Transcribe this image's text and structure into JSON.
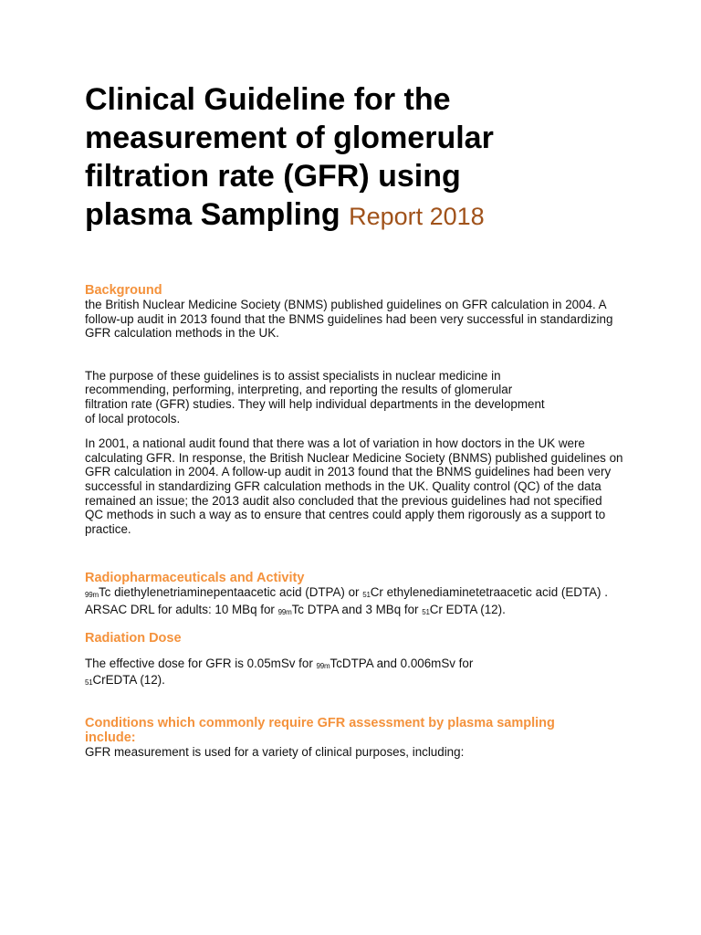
{
  "title": {
    "main": "Clinical Guideline for the measurement of glomerular filtration rate (GFR) using plasma Sampling",
    "report": "Report 2018"
  },
  "background": {
    "heading": "Background",
    "p1": "the British Nuclear Medicine Society (BNMS) published guidelines on GFR calculation in 2004. A follow-up audit in 2013 found that the BNMS guidelines had been very successful in standardizing GFR calculation methods in the UK.",
    "p2": "The purpose of these guidelines is to assist specialists in nuclear medicine in recommending, performing, interpreting, and reporting the results of glomerular filtration rate (GFR) studies. They will help individual departments in the development of local protocols.",
    "p3": "In 2001, a national audit found that there was a lot of variation in how doctors in the UK were calculating GFR. In response, the British Nuclear Medicine Society (BNMS) published guidelines on GFR calculation in 2004. A follow-up audit in 2013 found that the BNMS guidelines had been very successful in standardizing GFR calculation methods in the UK. Quality control (QC) of the data remained an issue; the 2013 audit also concluded that the previous guidelines had not specified QC methods in such a way as to ensure that centres could apply them rigorously as a support to practice."
  },
  "radiopharm": {
    "heading": "Radiopharmaceuticals and Activity",
    "iso_tc": "99m",
    "t1": "Tc diethylenetriaminepentaacetic acid (DTPA) or ",
    "iso_cr": "51",
    "t2": "Cr ethylenediaminetetraacetic acid (EDTA) . ARSAC DRL for adults: 10 MBq for ",
    "iso_tc2": "99m",
    "t3": "Tc DTPA and 3 MBq for ",
    "iso_cr2": "51",
    "t4": "Cr EDTA (12)."
  },
  "dose": {
    "heading": "Radiation Dose",
    "t1": "The effective dose for GFR is 0.05mSv for ",
    "iso_tc": "99m",
    "t2": "TcDTPA and 0.006mSv for ",
    "iso_cr": "51",
    "t3": "CrEDTA (12)."
  },
  "conditions": {
    "heading": "Conditions which commonly require GFR assessment by plasma sampling include:",
    "text": "GFR measurement is used for a variety of clinical purposes, including:"
  }
}
